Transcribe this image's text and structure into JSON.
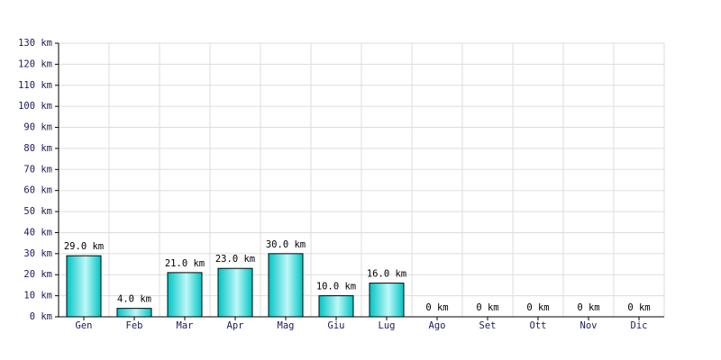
{
  "chart_data": {
    "type": "bar",
    "categories": [
      "Gen",
      "Feb",
      "Mar",
      "Apr",
      "Mag",
      "Giu",
      "Lug",
      "Ago",
      "Set",
      "Ott",
      "Nov",
      "Dic"
    ],
    "values": [
      29,
      4,
      21,
      23,
      30,
      10,
      16,
      0,
      0,
      0,
      0,
      0
    ],
    "value_labels": [
      "29.0 km",
      "4.0 km",
      "21.0 km",
      "23.0 km",
      "30.0 km",
      "10.0 km",
      "16.0 km",
      "0 km",
      "0 km",
      "0 km",
      "0 km",
      "0 km"
    ],
    "color": "#00c4c4",
    "ylim": [
      0,
      130
    ],
    "yticks": [
      {
        "value": 0,
        "label": "0 km"
      },
      {
        "value": 10,
        "label": "10 km"
      },
      {
        "value": 20,
        "label": "20 km"
      },
      {
        "value": 30,
        "label": "30 km"
      },
      {
        "value": 40,
        "label": "40 km"
      },
      {
        "value": 50,
        "label": "50 km"
      },
      {
        "value": 60,
        "label": "60 km"
      },
      {
        "value": 70,
        "label": "70 km"
      },
      {
        "value": 80,
        "label": "80 km"
      },
      {
        "value": 90,
        "label": "90 km"
      },
      {
        "value": 100,
        "label": "100 km"
      },
      {
        "value": 110,
        "label": "110 km"
      },
      {
        "value": 120,
        "label": "120 km"
      },
      {
        "value": 130,
        "label": "130 km"
      }
    ],
    "grid": true
  }
}
